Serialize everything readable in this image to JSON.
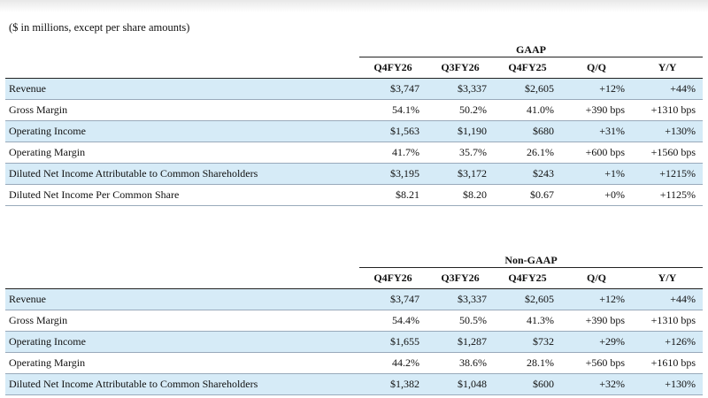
{
  "subtitle": "($ in millions, except per share amounts)",
  "columns": [
    "Q4FY26",
    "Q3FY26",
    "Q4FY25",
    "Q/Q",
    "Y/Y"
  ],
  "gaap": {
    "title": "GAAP",
    "rows": [
      {
        "label": "Revenue",
        "values": [
          "$3,747",
          "$3,337",
          "$2,605",
          "+12%",
          "+44%"
        ]
      },
      {
        "label": "Gross Margin",
        "values": [
          "54.1%",
          "50.2%",
          "41.0%",
          "+390 bps",
          "+1310 bps"
        ]
      },
      {
        "label": "Operating Income",
        "values": [
          "$1,563",
          "$1,190",
          "$680",
          "+31%",
          "+130%"
        ]
      },
      {
        "label": "Operating Margin",
        "values": [
          "41.7%",
          "35.7%",
          "26.1%",
          "+600 bps",
          "+1560 bps"
        ]
      },
      {
        "label": "Diluted Net Income Attributable to Common Shareholders",
        "values": [
          "$3,195",
          "$3,172",
          "$243",
          "+1%",
          "+1215%"
        ]
      },
      {
        "label": "Diluted Net Income Per Common Share",
        "values": [
          "$8.21",
          "$8.20",
          "$0.67",
          "+0%",
          "+1125%"
        ]
      }
    ]
  },
  "nongaap": {
    "title": "Non-GAAP",
    "rows": [
      {
        "label": "Revenue",
        "values": [
          "$3,747",
          "$3,337",
          "$2,605",
          "+12%",
          "+44%"
        ]
      },
      {
        "label": "Gross Margin",
        "values": [
          "54.4%",
          "50.5%",
          "41.3%",
          "+390 bps",
          "+1310 bps"
        ]
      },
      {
        "label": "Operating Income",
        "values": [
          "$1,655",
          "$1,287",
          "$732",
          "+29%",
          "+126%"
        ]
      },
      {
        "label": "Operating Margin",
        "values": [
          "44.2%",
          "38.6%",
          "28.1%",
          "+560 bps",
          "+1610 bps"
        ]
      },
      {
        "label": "Diluted Net Income Attributable to Common Shareholders",
        "values": [
          "$1,382",
          "$1,048",
          "$600",
          "+32%",
          "+130%"
        ]
      }
    ]
  },
  "colors": {
    "row_shade": "#d6ebf7",
    "rule": "#222222"
  }
}
